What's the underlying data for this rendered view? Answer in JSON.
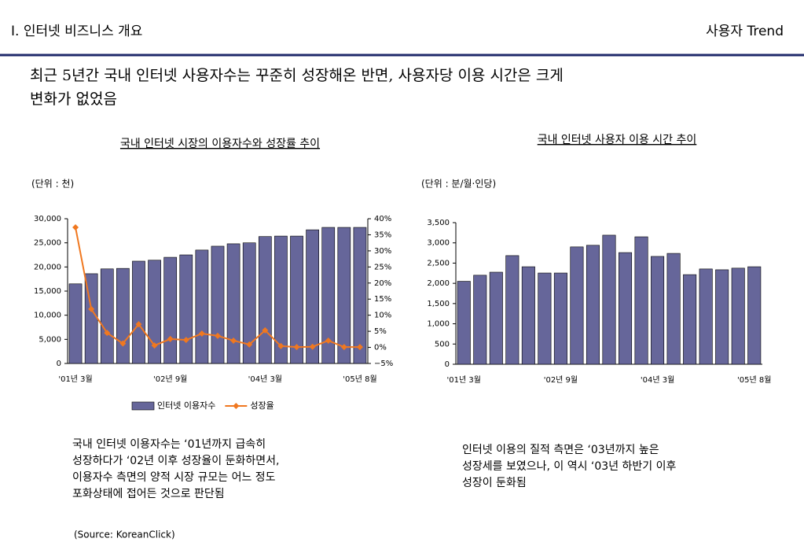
{
  "header": {
    "section": "I. 인터넷 비즈니스 개요",
    "topic": "사용자 Trend"
  },
  "headline": [
    "최근 5년간 국내 인터넷 사용자수는 꾸준히 성장해온 반면, 사용자당 이용 시간은 크게",
    "변화가 없었음"
  ],
  "chart_data": [
    {
      "type": "combo",
      "title": "국내 인터넷 시장의 이용자수와 성장률 추이",
      "unit": "(단위 : 천)",
      "categories": [
        "'01년 3월",
        null,
        null,
        null,
        null,
        null,
        "'02년 9월",
        null,
        null,
        null,
        null,
        null,
        "'04년 3월",
        null,
        null,
        null,
        null,
        null,
        "'05년 8월"
      ],
      "series": [
        {
          "name": "인터넷 이용자수",
          "type": "bar",
          "color": "#66669a",
          "values": [
            16500,
            18600,
            19600,
            19700,
            21200,
            21400,
            22000,
            22500,
            23500,
            24300,
            24800,
            25000,
            26300,
            26400,
            26400,
            27700,
            28200,
            28200,
            28200
          ]
        },
        {
          "name": "성장율",
          "type": "line",
          "axis": "y2",
          "color": "#f07820",
          "values": [
            37.3,
            11.9,
            4.5,
            1.2,
            7.2,
            0.6,
            2.6,
            2.3,
            4.3,
            3.6,
            2.1,
            0.9,
            5.3,
            0.4,
            0.1,
            0.2,
            2.1,
            0.1,
            0.1
          ]
        }
      ],
      "ylim": [
        0,
        30000
      ],
      "yticks": [
        0,
        {
          "value": 5000,
          "label": "5,000"
        },
        {
          "value": 10000,
          "label": "10,000"
        },
        {
          "value": 15000,
          "label": "15,000"
        },
        {
          "value": 20000,
          "label": "20,000"
        },
        {
          "value": 25000,
          "label": "25,000"
        },
        {
          "value": 30000,
          "label": "30,000"
        }
      ],
      "y2lim": [
        -5,
        40
      ],
      "y2ticks": [
        {
          "value": -5,
          "label": "−5%"
        },
        {
          "value": 0,
          "label": "0%"
        },
        {
          "value": 5,
          "label": "5%"
        },
        {
          "value": 10,
          "label": "10%"
        },
        {
          "value": 15,
          "label": "15%"
        },
        {
          "value": 20,
          "label": "20%"
        },
        {
          "value": 25,
          "label": "25%"
        },
        {
          "value": 30,
          "label": "30%"
        },
        {
          "value": 35,
          "label": "35%"
        },
        {
          "value": 40,
          "label": "40%"
        }
      ],
      "legend": "bottom",
      "grid": false
    },
    {
      "type": "bar",
      "title": "국내 인터넷 사용자 이용 시간 추이",
      "unit": "(단위 : 분/월·인당)",
      "color": "#66669a",
      "categories": [
        "'01년 3월",
        null,
        null,
        null,
        null,
        null,
        "'02년 9월",
        null,
        null,
        null,
        null,
        null,
        "'04년 3월",
        null,
        null,
        null,
        null,
        null,
        "'05년 8월"
      ],
      "values": [
        2050,
        2200,
        2275,
        2685,
        2410,
        2255,
        2255,
        2900,
        2940,
        3190,
        2760,
        3150,
        2665,
        2740,
        2215,
        2355,
        2335,
        2375,
        2410
      ],
      "ylim": [
        0,
        3500
      ],
      "yticks": [
        0,
        500,
        {
          "value": 1000,
          "label": "1,000"
        },
        {
          "value": 1500,
          "label": "1,500"
        },
        {
          "value": 2000,
          "label": "2,000"
        },
        {
          "value": 2500,
          "label": "2,500"
        },
        {
          "value": 3000,
          "label": "3,000"
        },
        {
          "value": 3500,
          "label": "3,500"
        }
      ],
      "grid": false
    }
  ],
  "notes": [
    [
      "국내 인터넷 이용자수는 ‘01년까지 급속히",
      "성장하다가 ‘02년 이후 성장율이 둔화하면서,",
      "이용자수 측면의 양적 시장 규모는 어느 정도",
      "포화상태에 접어든 것으로 판단됨"
    ],
    [
      "인터넷 이용의 질적 측면은 ‘03년까지 높은",
      "성장세를 보였으나, 이 역시 ‘03년 하반기 이후",
      "성장이 둔화됨"
    ]
  ],
  "source": "(Source: KoreanClick)"
}
